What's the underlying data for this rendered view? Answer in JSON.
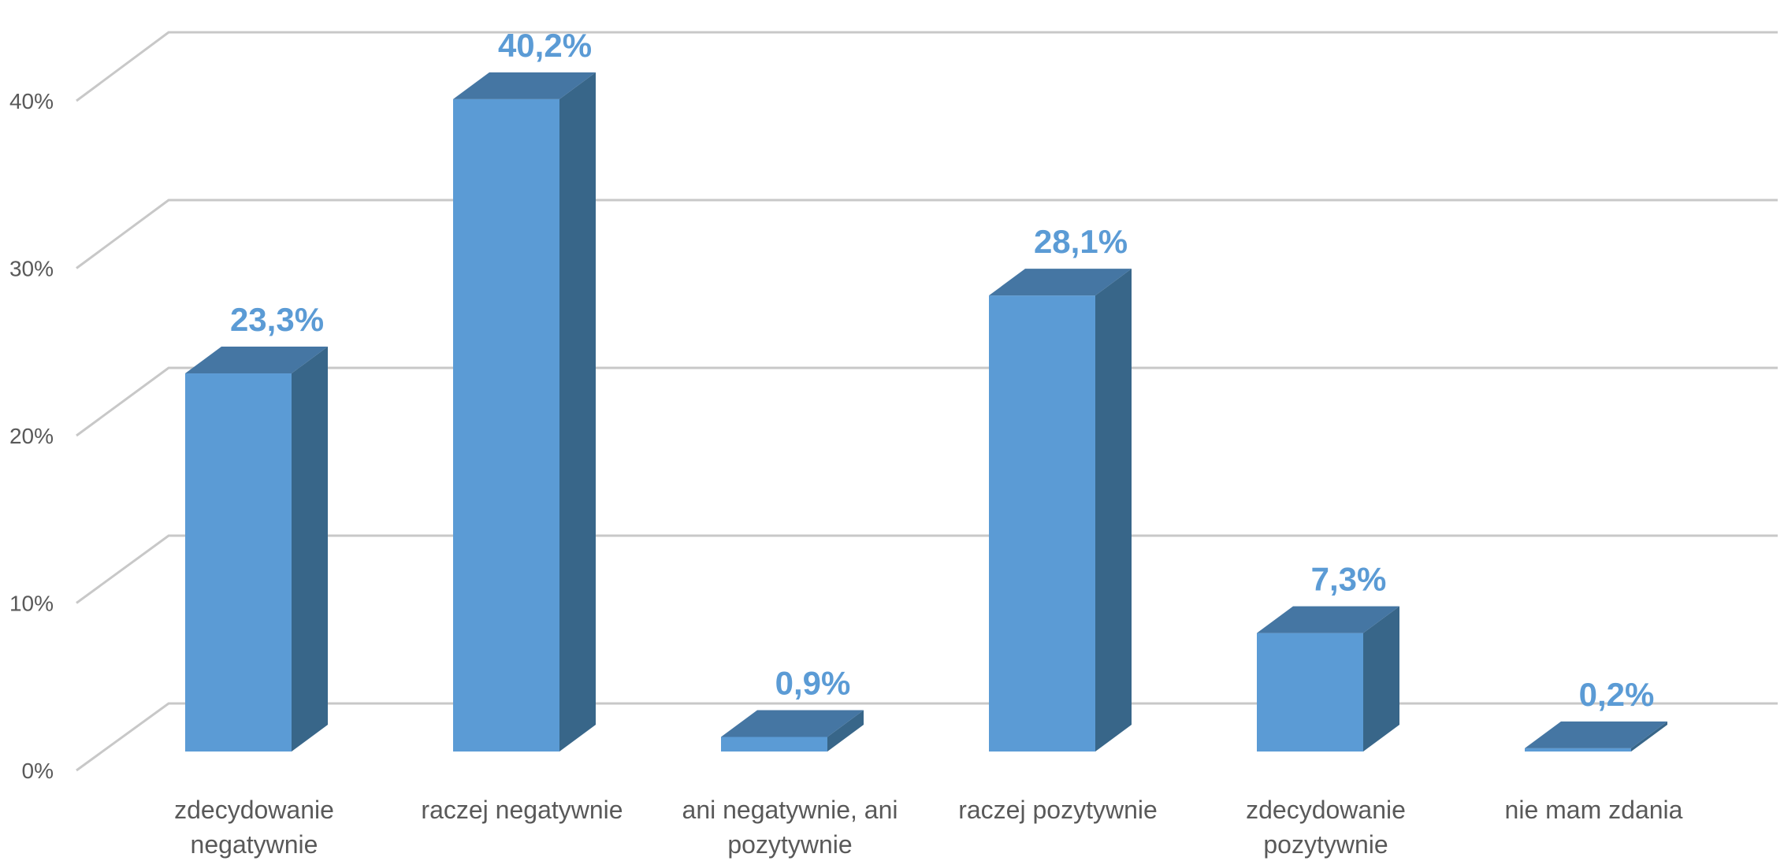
{
  "chart_data": {
    "type": "bar",
    "categories": [
      [
        "zdecydowanie",
        "negatywnie"
      ],
      [
        "raczej negatywnie"
      ],
      [
        "ani negatywnie, ani",
        "pozytywnie"
      ],
      [
        "raczej pozytywnie"
      ],
      [
        "zdecydowanie",
        "pozytywnie"
      ],
      [
        "nie mam zdania"
      ]
    ],
    "values": [
      23.3,
      40.2,
      0.9,
      28.1,
      7.3,
      0.2
    ],
    "data_labels": [
      "23,3%",
      "40,2%",
      "0,9%",
      "28,1%",
      "7,3%",
      "0,2%"
    ],
    "y_ticks": [
      0,
      10,
      20,
      30,
      40
    ],
    "y_tick_labels": [
      "0%",
      "10%",
      "20%",
      "30%",
      "40%"
    ],
    "ylim": [
      0,
      40
    ],
    "grid": true,
    "legend": "none",
    "style": "3d-column",
    "colors": {
      "front": "#5b9bd5",
      "side": "#386689",
      "top": "#4576a3",
      "grid": "#c8c8c8",
      "label": "#5b9bd5",
      "text": "#595959"
    }
  }
}
